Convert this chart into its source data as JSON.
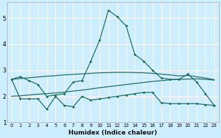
{
  "xlabel": "Humidex (Indice chaleur)",
  "bg_color": "#cceeff",
  "grid_color": "#ffffff",
  "line_color": "#1a6b5a",
  "xlim": [
    -0.5,
    23.5
  ],
  "ylim": [
    1.0,
    5.6
  ],
  "yticks": [
    1,
    2,
    3,
    4,
    5
  ],
  "xticks": [
    0,
    1,
    2,
    3,
    4,
    5,
    6,
    7,
    8,
    9,
    10,
    11,
    12,
    13,
    14,
    15,
    16,
    17,
    18,
    19,
    20,
    21,
    22,
    23
  ],
  "line1_x": [
    0,
    1,
    2,
    3,
    4,
    5,
    6,
    7,
    8,
    9,
    10,
    11,
    12,
    13,
    14,
    15,
    16,
    17,
    18,
    19,
    20,
    21,
    22,
    23
  ],
  "line1_y": [
    2.65,
    2.75,
    2.6,
    2.45,
    2.0,
    2.05,
    2.1,
    2.55,
    2.6,
    3.35,
    4.15,
    5.3,
    5.05,
    4.7,
    3.6,
    3.35,
    3.0,
    2.7,
    2.65,
    2.65,
    2.85,
    2.55,
    2.1,
    1.65
  ],
  "line2_x": [
    0,
    1,
    2,
    3,
    4,
    5,
    6,
    7,
    8,
    9,
    10,
    11,
    12,
    13,
    14,
    15,
    16,
    17,
    18,
    19,
    20,
    21,
    22,
    23
  ],
  "line2_y": [
    2.65,
    2.68,
    2.71,
    2.74,
    2.77,
    2.79,
    2.82,
    2.84,
    2.86,
    2.88,
    2.9,
    2.91,
    2.92,
    2.92,
    2.91,
    2.9,
    2.88,
    2.85,
    2.82,
    2.78,
    2.8,
    2.75,
    2.7,
    2.64
  ],
  "line3_x": [
    0,
    1,
    2,
    3,
    4,
    5,
    6,
    7,
    8,
    9,
    10,
    11,
    12,
    13,
    14,
    15,
    16,
    17,
    18,
    19,
    20,
    21,
    22,
    23
  ],
  "line3_y": [
    2.0,
    2.02,
    2.05,
    2.08,
    2.1,
    2.13,
    2.16,
    2.2,
    2.24,
    2.28,
    2.33,
    2.37,
    2.41,
    2.45,
    2.49,
    2.53,
    2.57,
    2.6,
    2.63,
    2.65,
    2.66,
    2.67,
    2.65,
    2.62
  ],
  "line4_x": [
    0,
    1,
    2,
    3,
    4,
    5,
    6,
    7,
    8,
    9,
    10,
    11,
    12,
    13,
    14,
    15,
    16,
    17,
    18,
    19,
    20,
    21,
    22,
    23
  ],
  "line4_y": [
    2.65,
    1.9,
    1.9,
    1.9,
    1.5,
    2.0,
    1.65,
    1.6,
    2.0,
    1.85,
    1.9,
    1.95,
    2.0,
    2.05,
    2.1,
    2.15,
    2.15,
    1.75,
    1.72,
    1.72,
    1.72,
    1.72,
    1.68,
    1.65
  ]
}
